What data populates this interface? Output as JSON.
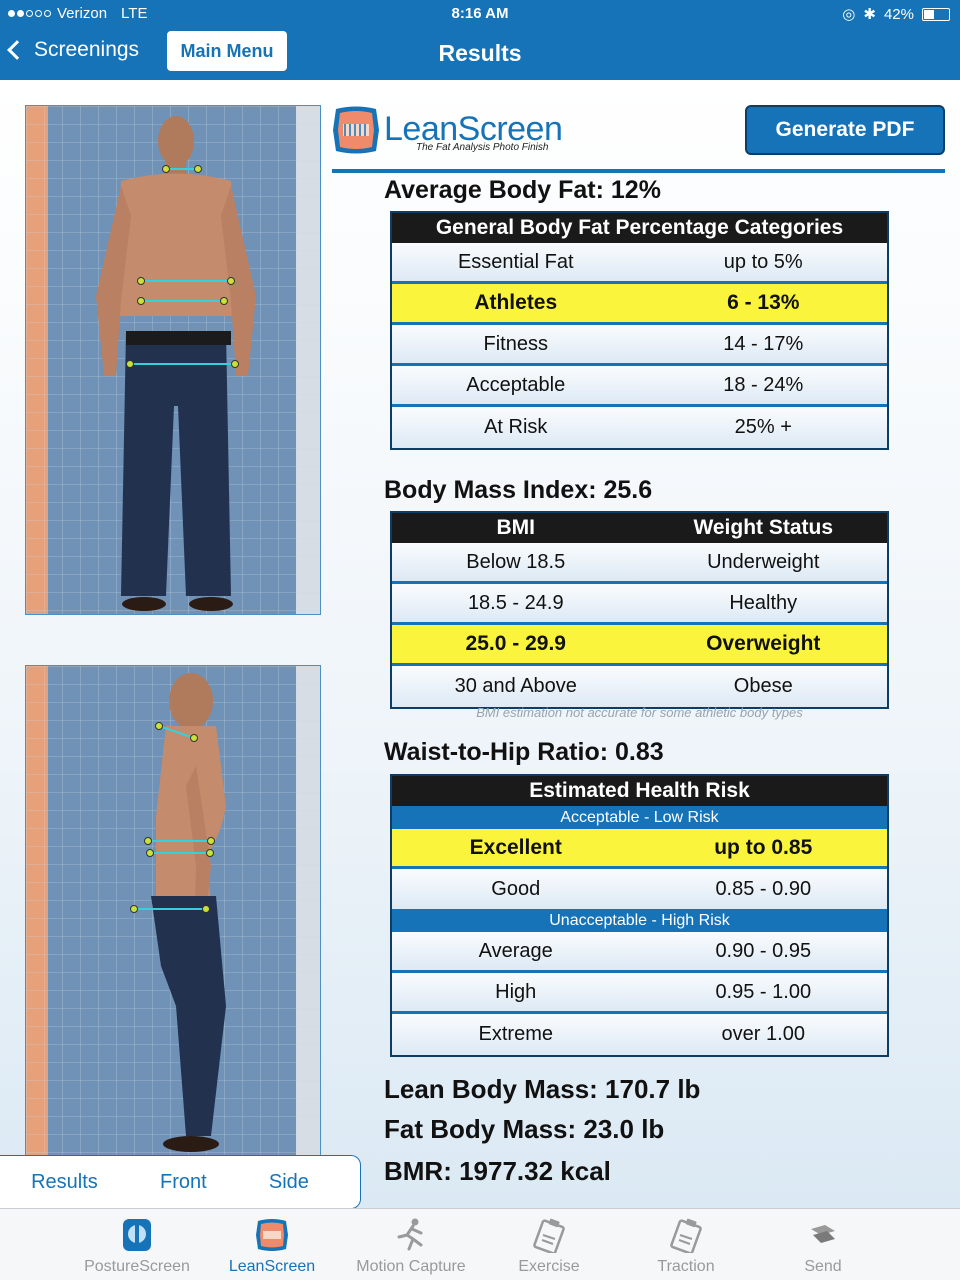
{
  "status_bar": {
    "carrier": "Verizon",
    "network": "LTE",
    "time": "8:16 AM",
    "battery": "42%",
    "battery_level": 0.42
  },
  "nav": {
    "back_label": "Screenings",
    "main_menu_label": "Main Menu",
    "title": "Results"
  },
  "photo_tabs": [
    "Results",
    "Front",
    "Side"
  ],
  "logo": {
    "lean": "Lean",
    "screen": "Screen",
    "tagline": "The Fat Analysis Photo Finish"
  },
  "generate_pdf_label": "Generate PDF",
  "body_fat": {
    "heading": "Average Body Fat: 12%",
    "table_title": "General Body Fat Percentage Categories",
    "rows": [
      {
        "label": "Essential Fat",
        "value": "up to 5%",
        "highlight": false
      },
      {
        "label": "Athletes",
        "value": "6 - 13%",
        "highlight": true
      },
      {
        "label": "Fitness",
        "value": "14 - 17%",
        "highlight": false
      },
      {
        "label": "Acceptable",
        "value": "18 - 24%",
        "highlight": false
      },
      {
        "label": "At Risk",
        "value": "25% +",
        "highlight": false
      }
    ]
  },
  "bmi": {
    "heading": "Body Mass Index: 25.6",
    "col_bmi": "BMI",
    "col_status": "Weight Status",
    "rows": [
      {
        "label": "Below 18.5",
        "value": "Underweight",
        "highlight": false
      },
      {
        "label": "18.5 - 24.9",
        "value": "Healthy",
        "highlight": false
      },
      {
        "label": "25.0 - 29.9",
        "value": "Overweight",
        "highlight": true
      },
      {
        "label": "30 and Above",
        "value": "Obese",
        "highlight": false
      }
    ],
    "note": "BMI estimation not accurate for some athletic body types"
  },
  "whr": {
    "heading": "Waist-to-Hip Ratio: 0.83",
    "table_title": "Estimated Health Risk",
    "group_low": "Acceptable - Low Risk",
    "group_high": "Unacceptable - High Risk",
    "rows_low": [
      {
        "label": "Excellent",
        "value": "up to 0.85",
        "highlight": true
      },
      {
        "label": "Good",
        "value": "0.85 - 0.90",
        "highlight": false
      }
    ],
    "rows_high": [
      {
        "label": "Average",
        "value": "0.90 - 0.95",
        "highlight": false
      },
      {
        "label": "High",
        "value": "0.95 - 1.00",
        "highlight": false
      },
      {
        "label": "Extreme",
        "value": "over 1.00",
        "highlight": false
      }
    ]
  },
  "stats": {
    "lean_mass": "Lean Body Mass: 170.7 lb",
    "fat_mass": "Fat Body Mass: 23.0 lb",
    "bmr": "BMR:  1977.32 kcal"
  },
  "tab_bar": [
    {
      "label": "PostureScreen",
      "icon": "posture-screen-icon",
      "active": false
    },
    {
      "label": "LeanScreen",
      "icon": "lean-screen-icon",
      "active": true
    },
    {
      "label": "Motion Capture",
      "icon": "runner-icon",
      "active": false
    },
    {
      "label": "Exercise",
      "icon": "clipboard-icon",
      "active": false
    },
    {
      "label": "Traction",
      "icon": "clipboard-icon",
      "active": false
    },
    {
      "label": "Send",
      "icon": "send-icon",
      "active": false
    }
  ],
  "colors": {
    "brand_blue": "#1673b7",
    "highlight_yellow": "#faf53c"
  }
}
